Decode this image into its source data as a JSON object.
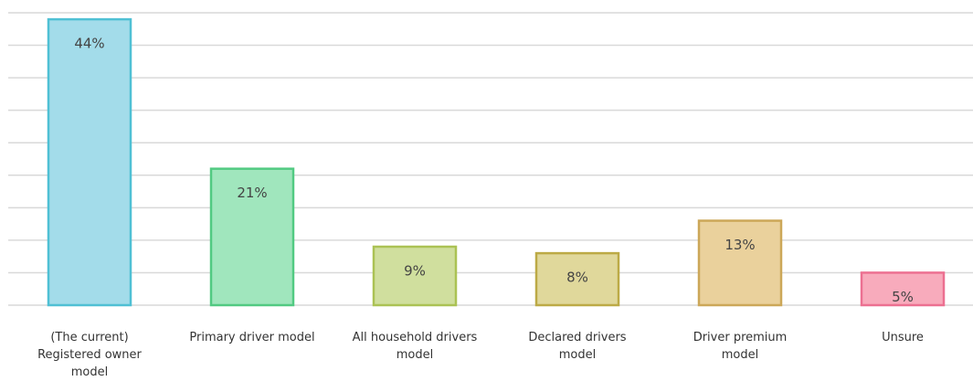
{
  "chart_data": {
    "type": "bar",
    "categories": [
      "(The current)\nRegistered owner\nmodel",
      "Primary driver model",
      "All household drivers\nmodel",
      "Declared drivers\nmodel",
      "Driver premium\nmodel",
      "Unsure"
    ],
    "values": [
      44,
      21,
      9,
      8,
      13,
      5
    ],
    "value_labels": [
      "44%",
      "21%",
      "9%",
      "8%",
      "13%",
      "5%"
    ],
    "colors": [
      "#a3dcea",
      "#a0e6bd",
      "#d0df9e",
      "#e0d89b",
      "#ead19c",
      "#f8abbc"
    ],
    "border_colors": [
      "#4fc0d4",
      "#52ca82",
      "#abc254",
      "#bcaa46",
      "#cca758",
      "#ec7091"
    ],
    "ylim": [
      0,
      45
    ],
    "yticks": [
      0,
      5,
      10,
      15,
      20,
      25,
      30,
      35,
      40,
      45
    ],
    "grid": true
  }
}
